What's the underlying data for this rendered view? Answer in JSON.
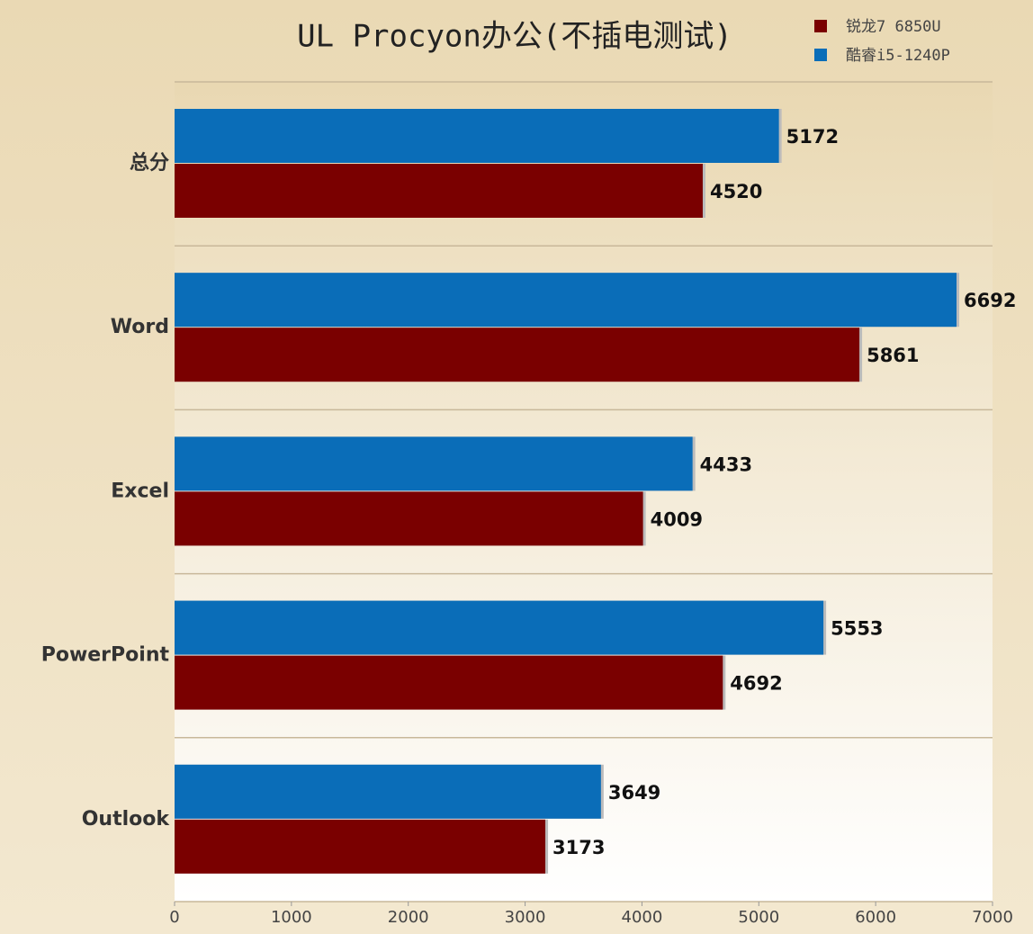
{
  "chart_data": {
    "type": "hbar",
    "title": "UL Procyon办公(不插电测试)",
    "categories": [
      "总分",
      "Word",
      "Excel",
      "PowerPoint",
      "Outlook"
    ],
    "series": [
      {
        "name": "锐龙7 6850U",
        "color": "#7a0000",
        "values": [
          4520,
          5861,
          4009,
          4692,
          3173
        ]
      },
      {
        "name": "酷睿i5-1240P",
        "color": "#0a6db8",
        "values": [
          5172,
          6692,
          4433,
          5553,
          3649
        ]
      }
    ],
    "xlim": [
      0,
      7000
    ],
    "xticks": [
      0,
      1000,
      2000,
      3000,
      4000,
      5000,
      6000,
      7000
    ],
    "legend": "top-right"
  }
}
